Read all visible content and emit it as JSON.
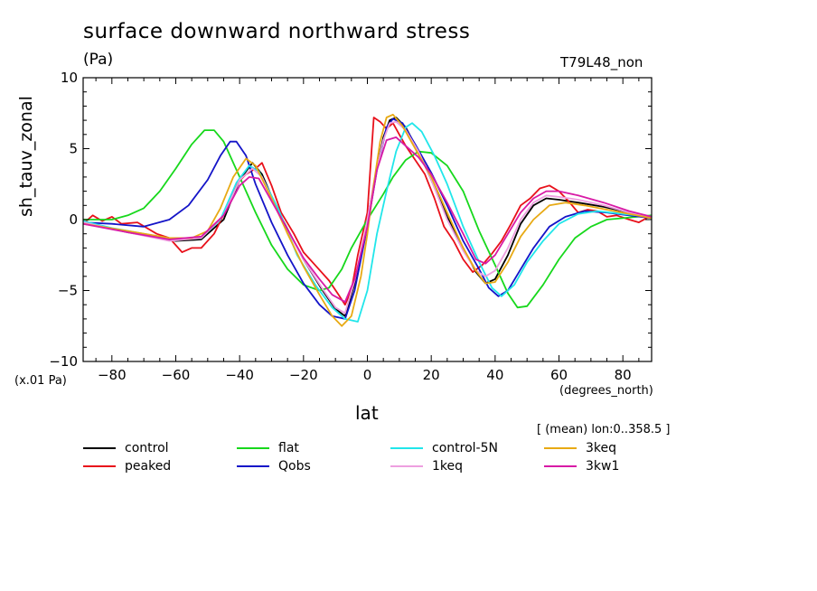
{
  "chart_data": {
    "type": "line",
    "title": "surface downward northward stress",
    "units": "(Pa)",
    "run_id": "T79L48_non",
    "scale_note": "(x.01 Pa)",
    "xlabel": "lat",
    "xunits": "(degrees_north)",
    "ylabel": "sh_tauv_zonal",
    "avg_note": "[ (mean) lon:0..358.5 ]",
    "xlim": [
      -89,
      89
    ],
    "ylim": [
      -10,
      10
    ],
    "x_ticks": [
      -80,
      -60,
      -40,
      -20,
      0,
      20,
      40,
      60,
      80
    ],
    "y_ticks": [
      -10,
      -5,
      0,
      5,
      10
    ],
    "series": [
      {
        "name": "control",
        "color": "#000000",
        "points": [
          [
            -89,
            -0.2
          ],
          [
            -75,
            -0.9
          ],
          [
            -60,
            -1.5
          ],
          [
            -52,
            -1.4
          ],
          [
            -45,
            0.0
          ],
          [
            -40,
            2.8
          ],
          [
            -36,
            4.0
          ],
          [
            -33,
            3.2
          ],
          [
            -28,
            0.6
          ],
          [
            -20,
            -2.8
          ],
          [
            -14,
            -5.0
          ],
          [
            -10,
            -6.3
          ],
          [
            -7,
            -6.8
          ],
          [
            -4,
            -4.5
          ],
          [
            -1,
            -1.5
          ],
          [
            0,
            0.0
          ],
          [
            2,
            2.5
          ],
          [
            5,
            5.8
          ],
          [
            7,
            7.0
          ],
          [
            9,
            7.2
          ],
          [
            12,
            6.5
          ],
          [
            16,
            4.8
          ],
          [
            20,
            2.8
          ],
          [
            25,
            0.2
          ],
          [
            30,
            -2.0
          ],
          [
            34,
            -3.7
          ],
          [
            37,
            -4.5
          ],
          [
            40,
            -4.2
          ],
          [
            44,
            -2.5
          ],
          [
            48,
            -0.3
          ],
          [
            52,
            1.0
          ],
          [
            56,
            1.5
          ],
          [
            60,
            1.4
          ],
          [
            66,
            1.2
          ],
          [
            74,
            0.9
          ],
          [
            82,
            0.5
          ],
          [
            89,
            0.1
          ]
        ]
      },
      {
        "name": "peaked",
        "color": "#e8101a",
        "points": [
          [
            -89,
            -0.3
          ],
          [
            -86,
            0.3
          ],
          [
            -83,
            -0.1
          ],
          [
            -80,
            0.2
          ],
          [
            -77,
            -0.3
          ],
          [
            -72,
            -0.2
          ],
          [
            -66,
            -1.0
          ],
          [
            -62,
            -1.3
          ],
          [
            -58,
            -2.3
          ],
          [
            -55,
            -2.0
          ],
          [
            -52,
            -2.0
          ],
          [
            -48,
            -1.0
          ],
          [
            -44,
            0.8
          ],
          [
            -41,
            2.5
          ],
          [
            -38,
            3.2
          ],
          [
            -35,
            3.6
          ],
          [
            -33,
            4.0
          ],
          [
            -30,
            2.4
          ],
          [
            -27,
            0.5
          ],
          [
            -23,
            -1.0
          ],
          [
            -20,
            -2.3
          ],
          [
            -16,
            -3.3
          ],
          [
            -12,
            -4.3
          ],
          [
            -9,
            -5.3
          ],
          [
            -7,
            -6.0
          ],
          [
            -5,
            -5.0
          ],
          [
            -3,
            -2.5
          ],
          [
            0,
            0.5
          ],
          [
            2,
            7.2
          ],
          [
            4,
            6.9
          ],
          [
            6,
            6.4
          ],
          [
            8,
            6.8
          ],
          [
            10,
            6.0
          ],
          [
            12,
            5.2
          ],
          [
            15,
            4.2
          ],
          [
            18,
            3.2
          ],
          [
            21,
            1.5
          ],
          [
            24,
            -0.5
          ],
          [
            27,
            -1.5
          ],
          [
            30,
            -2.8
          ],
          [
            33,
            -3.7
          ],
          [
            36,
            -3.2
          ],
          [
            39,
            -2.4
          ],
          [
            42,
            -1.5
          ],
          [
            45,
            -0.3
          ],
          [
            48,
            1.0
          ],
          [
            51,
            1.5
          ],
          [
            54,
            2.2
          ],
          [
            57,
            2.4
          ],
          [
            60,
            2.0
          ],
          [
            63,
            1.3
          ],
          [
            66,
            0.5
          ],
          [
            69,
            0.7
          ],
          [
            72,
            0.6
          ],
          [
            75,
            0.2
          ],
          [
            78,
            0.3
          ],
          [
            82,
            0.0
          ],
          [
            85,
            -0.2
          ],
          [
            89,
            0.3
          ]
        ]
      },
      {
        "name": "flat",
        "color": "#17d81c",
        "points": [
          [
            -89,
            0.0
          ],
          [
            -80,
            0.0
          ],
          [
            -75,
            0.3
          ],
          [
            -70,
            0.8
          ],
          [
            -65,
            2.0
          ],
          [
            -60,
            3.6
          ],
          [
            -55,
            5.3
          ],
          [
            -51,
            6.3
          ],
          [
            -48,
            6.3
          ],
          [
            -45,
            5.5
          ],
          [
            -40,
            3.0
          ],
          [
            -35,
            0.5
          ],
          [
            -30,
            -1.8
          ],
          [
            -25,
            -3.5
          ],
          [
            -20,
            -4.6
          ],
          [
            -15,
            -5.0
          ],
          [
            -12,
            -4.8
          ],
          [
            -8,
            -3.5
          ],
          [
            -5,
            -2.0
          ],
          [
            0,
            0.0
          ],
          [
            5,
            1.8
          ],
          [
            8,
            3.0
          ],
          [
            12,
            4.2
          ],
          [
            16,
            4.8
          ],
          [
            20,
            4.7
          ],
          [
            25,
            3.8
          ],
          [
            30,
            2.0
          ],
          [
            35,
            -0.8
          ],
          [
            40,
            -3.2
          ],
          [
            44,
            -5.2
          ],
          [
            47,
            -6.2
          ],
          [
            50,
            -6.1
          ],
          [
            55,
            -4.6
          ],
          [
            60,
            -2.8
          ],
          [
            65,
            -1.3
          ],
          [
            70,
            -0.5
          ],
          [
            75,
            0.0
          ],
          [
            80,
            0.1
          ],
          [
            89,
            0.3
          ]
        ]
      },
      {
        "name": "Qobs",
        "color": "#1414c8",
        "points": [
          [
            -89,
            -0.2
          ],
          [
            -80,
            -0.3
          ],
          [
            -70,
            -0.5
          ],
          [
            -62,
            0.0
          ],
          [
            -56,
            1.0
          ],
          [
            -50,
            2.8
          ],
          [
            -46,
            4.5
          ],
          [
            -43,
            5.5
          ],
          [
            -41,
            5.5
          ],
          [
            -38,
            4.5
          ],
          [
            -35,
            2.5
          ],
          [
            -30,
            -0.2
          ],
          [
            -25,
            -2.5
          ],
          [
            -20,
            -4.5
          ],
          [
            -15,
            -6.0
          ],
          [
            -11,
            -6.8
          ],
          [
            -7,
            -7.0
          ],
          [
            -4,
            -5.0
          ],
          [
            0,
            -0.5
          ],
          [
            3,
            3.5
          ],
          [
            6,
            6.5
          ],
          [
            8,
            7.1
          ],
          [
            11,
            6.8
          ],
          [
            15,
            5.3
          ],
          [
            20,
            3.3
          ],
          [
            25,
            1.0
          ],
          [
            30,
            -1.5
          ],
          [
            35,
            -3.5
          ],
          [
            38,
            -4.8
          ],
          [
            41,
            -5.4
          ],
          [
            44,
            -5.0
          ],
          [
            48,
            -3.5
          ],
          [
            52,
            -2.0
          ],
          [
            57,
            -0.5
          ],
          [
            62,
            0.2
          ],
          [
            68,
            0.6
          ],
          [
            75,
            0.5
          ],
          [
            82,
            0.3
          ],
          [
            89,
            0.1
          ]
        ]
      },
      {
        "name": "control-5N",
        "color": "#21e6ea",
        "points": [
          [
            -89,
            -0.1
          ],
          [
            -80,
            -0.6
          ],
          [
            -70,
            -1.0
          ],
          [
            -60,
            -1.4
          ],
          [
            -52,
            -1.3
          ],
          [
            -46,
            0.0
          ],
          [
            -41,
            2.6
          ],
          [
            -37,
            3.8
          ],
          [
            -34,
            3.4
          ],
          [
            -28,
            0.8
          ],
          [
            -22,
            -2.5
          ],
          [
            -16,
            -4.7
          ],
          [
            -11,
            -6.2
          ],
          [
            -7,
            -7.0
          ],
          [
            -3,
            -7.2
          ],
          [
            0,
            -5.0
          ],
          [
            3,
            -1.0
          ],
          [
            6,
            2.0
          ],
          [
            9,
            4.8
          ],
          [
            12,
            6.5
          ],
          [
            14,
            6.8
          ],
          [
            17,
            6.2
          ],
          [
            21,
            4.5
          ],
          [
            25,
            2.5
          ],
          [
            30,
            -0.5
          ],
          [
            35,
            -3.0
          ],
          [
            39,
            -4.8
          ],
          [
            42,
            -5.4
          ],
          [
            46,
            -4.6
          ],
          [
            50,
            -3.0
          ],
          [
            55,
            -1.5
          ],
          [
            60,
            -0.3
          ],
          [
            66,
            0.4
          ],
          [
            72,
            0.6
          ],
          [
            80,
            0.4
          ],
          [
            89,
            0.2
          ]
        ]
      },
      {
        "name": "1keq",
        "color": "#ee9fe0",
        "points": [
          [
            -89,
            -0.2
          ],
          [
            -75,
            -0.9
          ],
          [
            -62,
            -1.5
          ],
          [
            -52,
            -1.3
          ],
          [
            -45,
            0.3
          ],
          [
            -40,
            2.8
          ],
          [
            -36,
            3.6
          ],
          [
            -33,
            3.0
          ],
          [
            -28,
            0.5
          ],
          [
            -20,
            -2.8
          ],
          [
            -14,
            -4.9
          ],
          [
            -10,
            -6.2
          ],
          [
            -7,
            -6.6
          ],
          [
            -4,
            -4.3
          ],
          [
            -1,
            -1.2
          ],
          [
            0,
            0.0
          ],
          [
            2,
            2.6
          ],
          [
            5,
            5.6
          ],
          [
            7,
            6.8
          ],
          [
            9,
            6.9
          ],
          [
            12,
            6.3
          ],
          [
            16,
            4.8
          ],
          [
            20,
            2.8
          ],
          [
            25,
            0.0
          ],
          [
            30,
            -2.2
          ],
          [
            34,
            -3.6
          ],
          [
            37,
            -4.0
          ],
          [
            40,
            -3.6
          ],
          [
            44,
            -2.0
          ],
          [
            48,
            0.0
          ],
          [
            52,
            1.2
          ],
          [
            56,
            1.7
          ],
          [
            60,
            1.6
          ],
          [
            66,
            1.4
          ],
          [
            74,
            1.0
          ],
          [
            82,
            0.5
          ],
          [
            89,
            0.2
          ]
        ]
      },
      {
        "name": "3keq",
        "color": "#e8aa14",
        "points": [
          [
            -89,
            -0.3
          ],
          [
            -75,
            -0.8
          ],
          [
            -62,
            -1.3
          ],
          [
            -55,
            -1.3
          ],
          [
            -50,
            -0.8
          ],
          [
            -46,
            0.8
          ],
          [
            -42,
            3.0
          ],
          [
            -38,
            4.3
          ],
          [
            -35,
            3.8
          ],
          [
            -30,
            1.5
          ],
          [
            -25,
            -1.0
          ],
          [
            -20,
            -3.3
          ],
          [
            -15,
            -5.3
          ],
          [
            -11,
            -6.8
          ],
          [
            -8,
            -7.5
          ],
          [
            -5,
            -6.8
          ],
          [
            -2,
            -4.0
          ],
          [
            0,
            -1.0
          ],
          [
            2,
            2.5
          ],
          [
            4,
            5.5
          ],
          [
            6,
            7.2
          ],
          [
            8,
            7.4
          ],
          [
            11,
            6.6
          ],
          [
            15,
            5.0
          ],
          [
            20,
            3.0
          ],
          [
            25,
            0.5
          ],
          [
            30,
            -2.0
          ],
          [
            34,
            -3.6
          ],
          [
            37,
            -4.5
          ],
          [
            40,
            -4.4
          ],
          [
            44,
            -3.0
          ],
          [
            48,
            -1.2
          ],
          [
            52,
            0.0
          ],
          [
            57,
            1.0
          ],
          [
            62,
            1.2
          ],
          [
            68,
            1.0
          ],
          [
            75,
            0.7
          ],
          [
            82,
            0.4
          ],
          [
            89,
            0.1
          ]
        ]
      },
      {
        "name": "3kw1",
        "color": "#d81aa6",
        "points": [
          [
            -89,
            -0.3
          ],
          [
            -75,
            -0.9
          ],
          [
            -62,
            -1.4
          ],
          [
            -52,
            -1.2
          ],
          [
            -45,
            0.3
          ],
          [
            -40,
            2.4
          ],
          [
            -37,
            3.0
          ],
          [
            -34,
            2.9
          ],
          [
            -30,
            1.3
          ],
          [
            -25,
            -0.7
          ],
          [
            -20,
            -2.7
          ],
          [
            -15,
            -4.2
          ],
          [
            -11,
            -5.3
          ],
          [
            -7,
            -5.8
          ],
          [
            -4,
            -4.2
          ],
          [
            0,
            -0.5
          ],
          [
            3,
            3.5
          ],
          [
            6,
            5.6
          ],
          [
            9,
            5.8
          ],
          [
            12,
            5.2
          ],
          [
            16,
            4.4
          ],
          [
            20,
            3.2
          ],
          [
            25,
            1.2
          ],
          [
            30,
            -1.0
          ],
          [
            34,
            -2.8
          ],
          [
            37,
            -3.1
          ],
          [
            40,
            -2.5
          ],
          [
            44,
            -1.0
          ],
          [
            48,
            0.5
          ],
          [
            52,
            1.5
          ],
          [
            56,
            2.0
          ],
          [
            60,
            2.0
          ],
          [
            66,
            1.7
          ],
          [
            74,
            1.2
          ],
          [
            82,
            0.6
          ],
          [
            89,
            0.2
          ]
        ]
      }
    ]
  }
}
